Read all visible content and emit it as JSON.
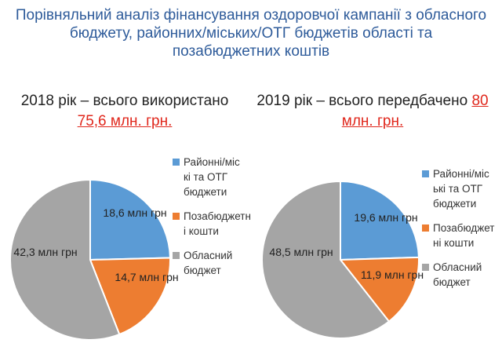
{
  "title_lines": [
    "Порівняльний аналіз фінансування оздоровчої кампанії з обласного",
    "бюджету, районних/міських/ОТГ бюджетів області та",
    "позабюджетних коштів"
  ],
  "subtitles": [
    {
      "prefix": "2018 рік – всього використано",
      "amount": "75,6 млн. грн."
    },
    {
      "prefix": "2019 рік – всього передбачено",
      "amount": "80",
      "amount2": "млн. грн."
    }
  ],
  "colors": {
    "blue": "#5b9bd5",
    "orange": "#ed7d31",
    "gray": "#a5a5a5",
    "title": "#2e5b9a",
    "accent_red": "#e0271c"
  },
  "chart_data": [
    {
      "type": "pie",
      "title": "2018 рік – всього використано 75,6 млн. грн.",
      "categories": [
        "Районні/міські та ОТГ бюджети",
        "Позабюджетні кошти",
        "Обласний бюджет"
      ],
      "values": [
        18.6,
        14.7,
        42.3
      ],
      "data_labels": [
        "18,6 млн грн",
        "14,7 млн грн",
        "42,3 млн грн"
      ],
      "legend": {
        "placement": "right",
        "entries": [
          [
            "Районні/міс",
            "кі та ОТГ",
            "бюджети"
          ],
          [
            "Позабюджетн",
            "і кошти"
          ],
          [
            "Обласний",
            "бюджет"
          ]
        ]
      }
    },
    {
      "type": "pie",
      "title": "2019 рік – всього передбачено 80 млн. грн.",
      "categories": [
        "Районні/міські та ОТГ бюджети",
        "Позабюджетні кошти",
        "Обласний бюджет"
      ],
      "values": [
        19.6,
        11.9,
        48.5
      ],
      "data_labels": [
        "19,6 млн грн",
        "11,9 млн грн",
        "48,5 млн грн"
      ],
      "legend": {
        "placement": "right",
        "entries": [
          [
            "Районні/міс",
            "ькі та ОТГ",
            "бюджети"
          ],
          [
            "Позабюджет",
            "ні кошти"
          ],
          [
            "Обласний",
            "бюджет"
          ]
        ]
      }
    }
  ]
}
